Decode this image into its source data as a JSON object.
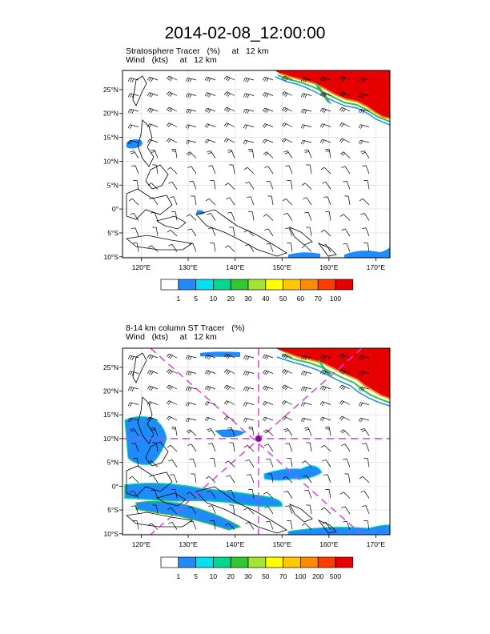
{
  "title": "2014-02-08_12:00:00",
  "panels": [
    {
      "subtitle_line1": "Stratosphere Tracer   (%)     at   12 km",
      "subtitle_line2": "Wind   (kts)     at   12 km",
      "colorbar_labels": [
        "1",
        "5",
        "10",
        "20",
        "30",
        "40",
        "50",
        "60",
        "70",
        "100"
      ],
      "colorbar_colors": [
        "#ffffff",
        "#1e8cff",
        "#00e1f0",
        "#00d890",
        "#32c832",
        "#a0e632",
        "#ffff00",
        "#ffc800",
        "#ff8c00",
        "#ff3c00",
        "#e60000"
      ]
    },
    {
      "subtitle_line1": "8-14 km column ST Tracer   (%)",
      "subtitle_line2": "Wind   (kts)     at   12 km",
      "colorbar_labels": [
        "1",
        "5",
        "10",
        "20",
        "30",
        "50",
        "70",
        "100",
        "200",
        "500"
      ],
      "colorbar_colors": [
        "#ffffff",
        "#1e8cff",
        "#00e1f0",
        "#00d890",
        "#32c832",
        "#a0e632",
        "#ffff00",
        "#ffc800",
        "#ff8c00",
        "#ff3c00",
        "#e60000"
      ]
    }
  ],
  "chart_data": {
    "type": "heatmap",
    "x_tick_labels": [
      "120°E",
      "130°E",
      "140°E",
      "150°E",
      "160°E",
      "170°E"
    ],
    "y_tick_labels": [
      "10°S",
      "5°S",
      "0°",
      "5°N",
      "10°N",
      "15°N",
      "20°N",
      "25°N"
    ],
    "x_ticks": [
      120,
      130,
      140,
      150,
      160,
      170
    ],
    "y_ticks": [
      -10,
      -5,
      0,
      5,
      10,
      15,
      20,
      25
    ],
    "xlim": [
      116,
      173
    ],
    "ylim": [
      -10.2,
      29
    ],
    "cross_section_center": [
      145,
      10
    ]
  }
}
